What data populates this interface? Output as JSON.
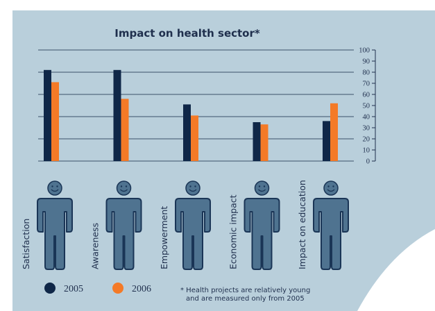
{
  "chart_data": {
    "type": "bar",
    "title": "Impact on health sector*",
    "categories": [
      "Satisfaction",
      "Awareness",
      "Empowerment",
      "Economic impact",
      "Impact on education"
    ],
    "series": [
      {
        "name": "2005",
        "values": [
          82,
          82,
          51,
          35,
          36
        ]
      },
      {
        "name": "2006",
        "values": [
          71,
          56,
          41,
          33,
          52
        ]
      }
    ],
    "ylim": [
      0,
      100
    ],
    "yticks": [
      0,
      10,
      20,
      30,
      40,
      50,
      60,
      70,
      80,
      90,
      100
    ],
    "grid": true,
    "y_axis_side": "right",
    "legend_position": "bottom-left",
    "footnote": [
      "* Health projects are relatively young",
      "and are measured only from 2005"
    ]
  },
  "colors": {
    "panel": "#b9cfdb",
    "series_2005": "#0f2748",
    "series_2006": "#f47a27",
    "figure_fill": "#4f7390",
    "figure_outline": "#1a3556",
    "text": "#1f2f4d",
    "gridline": "#3b5068"
  },
  "icons": [
    "person-icon"
  ]
}
